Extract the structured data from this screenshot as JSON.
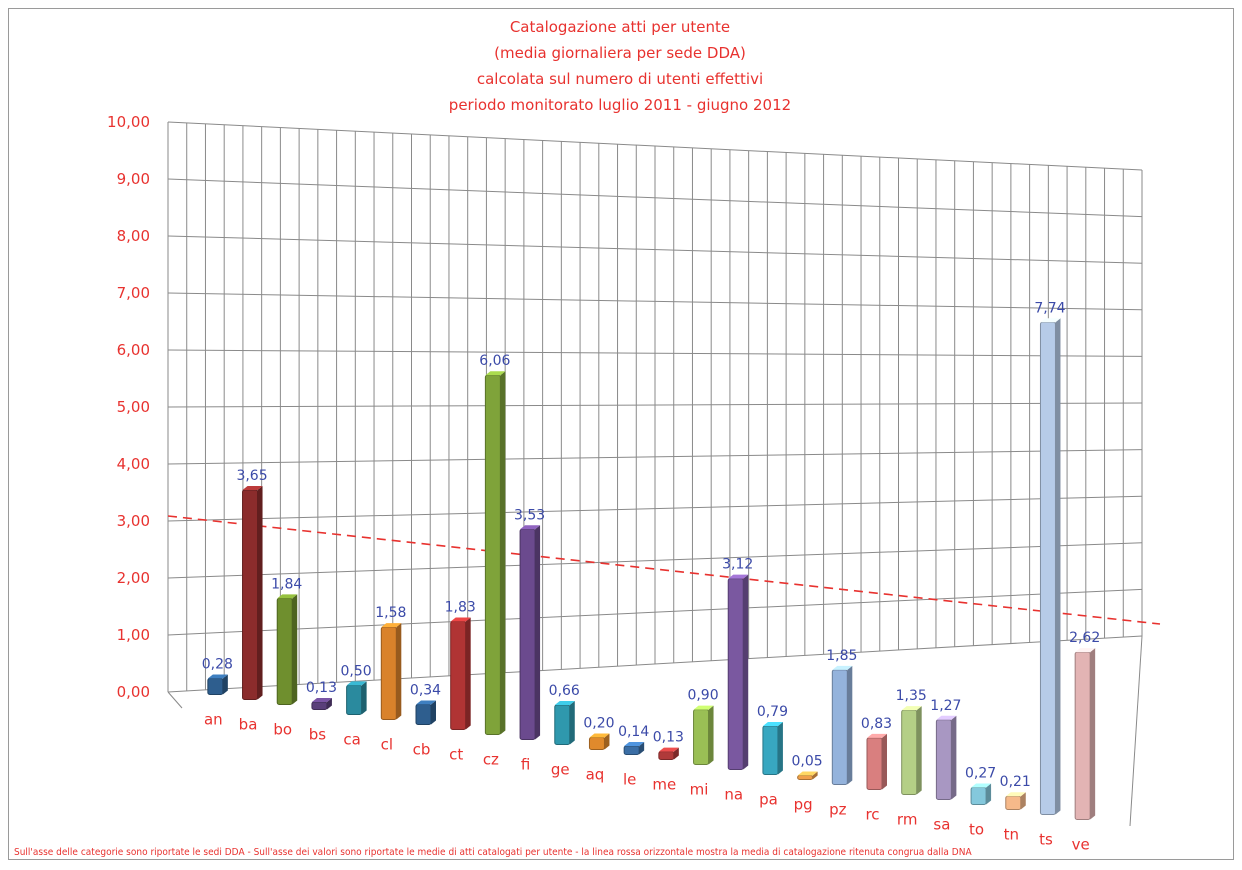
{
  "chart_data": {
    "type": "bar",
    "title_lines": [
      "Catalogazione atti per utente",
      "(media giornaliera per sede DDA)",
      "calcolata sul numero di utenti effettivi",
      "periodo monitorato luglio 2011  - giugno 2012"
    ],
    "categories": [
      "an",
      "ba",
      "bo",
      "bs",
      "ca",
      "cl",
      "cb",
      "ct",
      "cz",
      "fi",
      "ge",
      "aq",
      "le",
      "me",
      "mi",
      "na",
      "pa",
      "pg",
      "pz",
      "rc",
      "rm",
      "sa",
      "to",
      "tn",
      "ts",
      "ve"
    ],
    "values": [
      0.28,
      3.65,
      1.84,
      0.13,
      0.5,
      1.58,
      0.34,
      1.83,
      6.06,
      3.53,
      0.66,
      0.2,
      0.14,
      0.13,
      0.9,
      3.12,
      0.79,
      0.05,
      1.85,
      0.83,
      1.35,
      1.27,
      0.27,
      0.21,
      7.74,
      2.62
    ],
    "value_labels": [
      "0,28",
      "3,65",
      "1,84",
      "0,13",
      "0,50",
      "1,58",
      "0,34",
      "1,83",
      "6,06",
      "3,53",
      "0,66",
      "0,20",
      "0,14",
      "0,13",
      "0,90",
      "3,12",
      "0,79",
      "0,05",
      "1,85",
      "0,83",
      "1,35",
      "1,27",
      "0,27",
      "0,21",
      "7,74",
      "2,62"
    ],
    "bar_colors": [
      "#2e5e8e",
      "#8b2c2c",
      "#6f8f2e",
      "#5a3f7a",
      "#2a8a9e",
      "#d9822b",
      "#2e5e8e",
      "#b03434",
      "#7fa33a",
      "#6b4a8e",
      "#2f98ad",
      "#e08a2c",
      "#3b6ea5",
      "#b03a3a",
      "#9abf55",
      "#7a58a0",
      "#38a7c0",
      "#f0a04a",
      "#94b3dc",
      "#d97f7f",
      "#b4cf86",
      "#a897c2",
      "#84c8dc",
      "#f6b98a",
      "#b6cbe8",
      "#e3b4b4"
    ],
    "ylim": [
      0,
      10
    ],
    "yticks": [
      "0,00",
      "1,00",
      "2,00",
      "3,00",
      "4,00",
      "5,00",
      "6,00",
      "7,00",
      "8,00",
      "9,00",
      "10,00"
    ],
    "reference_line": {
      "style": "dashed",
      "color": "#e8322f"
    },
    "grid": true,
    "footnote": "Sull'asse delle categorie sono riportate le sedi DDA - Sull'asse dei valori sono riportate le medie di atti catalogati  per utente - la linea rossa orizzontale  mostra la media  di catalogazione  ritenuta congrua  dalla DNA"
  }
}
